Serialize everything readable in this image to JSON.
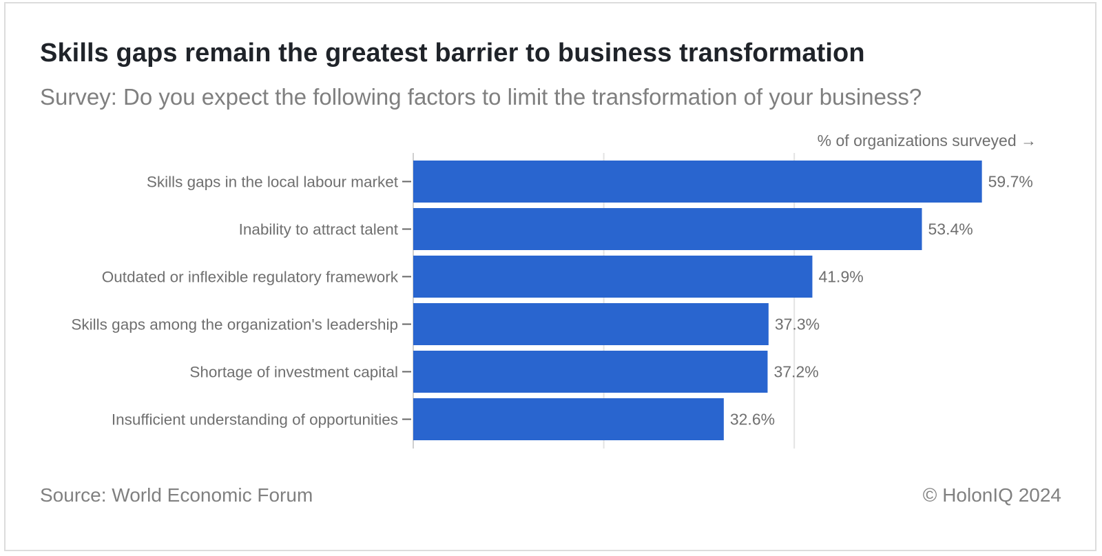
{
  "header": {
    "title": "Skills gaps remain the greatest barrier to business transformation",
    "subtitle": "Survey: Do you expect the following factors to limit the transformation of your business?"
  },
  "chart_data": {
    "type": "bar",
    "orientation": "horizontal",
    "title": "Skills gaps remain the greatest barrier to business transformation",
    "subtitle": "Survey: Do you expect the following factors to limit the transformation of your business?",
    "xlabel": "% of organizations surveyed →",
    "ylabel": "",
    "xlim": [
      0,
      65
    ],
    "gridlines_at": [
      0,
      20,
      40
    ],
    "grid": true,
    "legend": "none",
    "categories": [
      "Skills gaps in the local labour market",
      "Inability to attract talent",
      "Outdated or inflexible regulatory framework",
      "Skills gaps among the organization's leadership",
      "Shortage of investment capital",
      "Insufficient understanding of opportunities"
    ],
    "values": [
      59.7,
      53.4,
      41.9,
      37.3,
      37.2,
      32.6
    ],
    "value_labels": [
      "59.7%",
      "53.4%",
      "41.9%",
      "37.3%",
      "37.2%",
      "32.6%"
    ],
    "colors": {
      "bar": "#2965cf",
      "grid": "#e3e3e3",
      "tick": "#666666",
      "label_text": "#6f6f6f"
    }
  },
  "footer": {
    "source": "Source: World Economic Forum",
    "copyright": "© HolonIQ 2024"
  }
}
